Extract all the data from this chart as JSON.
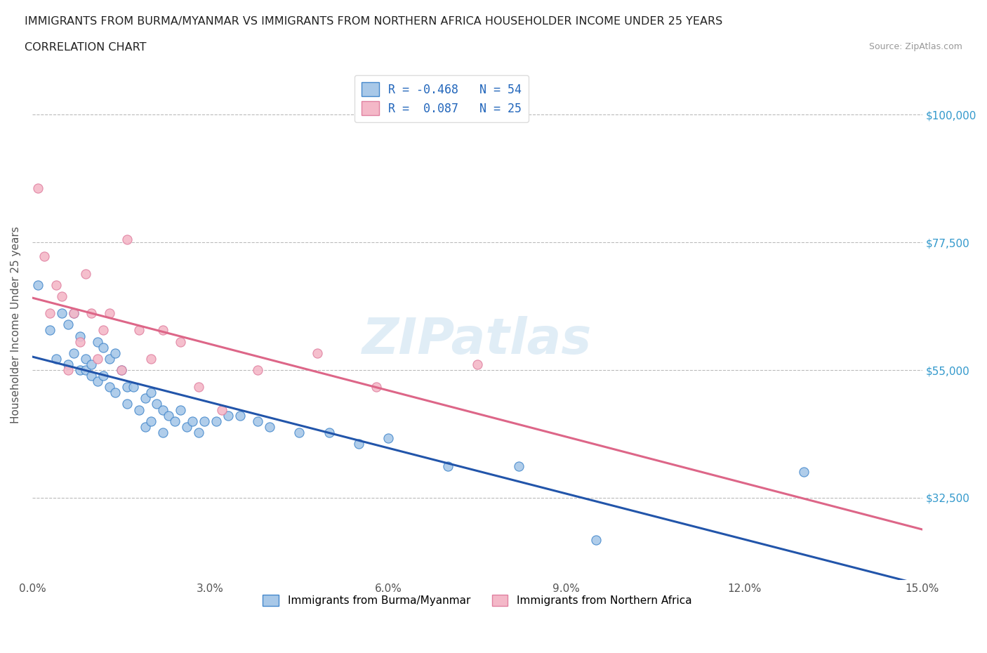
{
  "title_line1": "IMMIGRANTS FROM BURMA/MYANMAR VS IMMIGRANTS FROM NORTHERN AFRICA HOUSEHOLDER INCOME UNDER 25 YEARS",
  "title_line2": "CORRELATION CHART",
  "source_text": "Source: ZipAtlas.com",
  "ylabel": "Householder Income Under 25 years",
  "xlim": [
    0.0,
    0.15
  ],
  "ylim": [
    18000,
    108000
  ],
  "xticks": [
    0.0,
    0.03,
    0.06,
    0.09,
    0.12,
    0.15
  ],
  "xticklabels": [
    "0.0%",
    "3.0%",
    "6.0%",
    "9.0%",
    "12.0%",
    "15.0%"
  ],
  "yticks": [
    32500,
    55000,
    77500,
    100000
  ],
  "yticklabels": [
    "$32,500",
    "$55,000",
    "$77,500",
    "$100,000"
  ],
  "hlines": [
    32500,
    55000,
    77500,
    100000
  ],
  "R_blue": -0.468,
  "N_blue": 54,
  "R_pink": 0.087,
  "N_pink": 25,
  "blue_color": "#a8c8e8",
  "pink_color": "#f4b8c8",
  "blue_edge_color": "#4488cc",
  "pink_edge_color": "#e080a0",
  "blue_line_color": "#2255aa",
  "pink_line_color": "#dd6688",
  "watermark": "ZIPatlas",
  "blue_scatter_x": [
    0.001,
    0.003,
    0.004,
    0.005,
    0.006,
    0.006,
    0.007,
    0.007,
    0.008,
    0.008,
    0.009,
    0.009,
    0.01,
    0.01,
    0.011,
    0.011,
    0.012,
    0.012,
    0.013,
    0.013,
    0.014,
    0.014,
    0.015,
    0.016,
    0.016,
    0.017,
    0.018,
    0.019,
    0.019,
    0.02,
    0.02,
    0.021,
    0.022,
    0.022,
    0.023,
    0.024,
    0.025,
    0.026,
    0.027,
    0.028,
    0.029,
    0.031,
    0.033,
    0.035,
    0.038,
    0.04,
    0.045,
    0.05,
    0.055,
    0.06,
    0.07,
    0.082,
    0.095,
    0.13
  ],
  "blue_scatter_y": [
    70000,
    62000,
    57000,
    65000,
    63000,
    56000,
    65000,
    58000,
    61000,
    55000,
    57000,
    55000,
    56000,
    54000,
    60000,
    53000,
    59000,
    54000,
    57000,
    52000,
    58000,
    51000,
    55000,
    49000,
    52000,
    52000,
    48000,
    50000,
    45000,
    51000,
    46000,
    49000,
    48000,
    44000,
    47000,
    46000,
    48000,
    45000,
    46000,
    44000,
    46000,
    46000,
    47000,
    47000,
    46000,
    45000,
    44000,
    44000,
    42000,
    43000,
    38000,
    38000,
    25000,
    37000
  ],
  "pink_scatter_x": [
    0.001,
    0.002,
    0.003,
    0.004,
    0.005,
    0.006,
    0.007,
    0.008,
    0.009,
    0.01,
    0.011,
    0.012,
    0.013,
    0.015,
    0.016,
    0.018,
    0.02,
    0.022,
    0.025,
    0.028,
    0.032,
    0.038,
    0.048,
    0.058,
    0.075
  ],
  "pink_scatter_y": [
    87000,
    75000,
    65000,
    70000,
    68000,
    55000,
    65000,
    60000,
    72000,
    65000,
    57000,
    62000,
    65000,
    55000,
    78000,
    62000,
    57000,
    62000,
    60000,
    52000,
    48000,
    55000,
    58000,
    52000,
    56000
  ],
  "legend_label_blue": "Immigrants from Burma/Myanmar",
  "legend_label_pink": "Immigrants from Northern Africa",
  "background_color": "#ffffff",
  "grid_color": "#bbbbbb"
}
